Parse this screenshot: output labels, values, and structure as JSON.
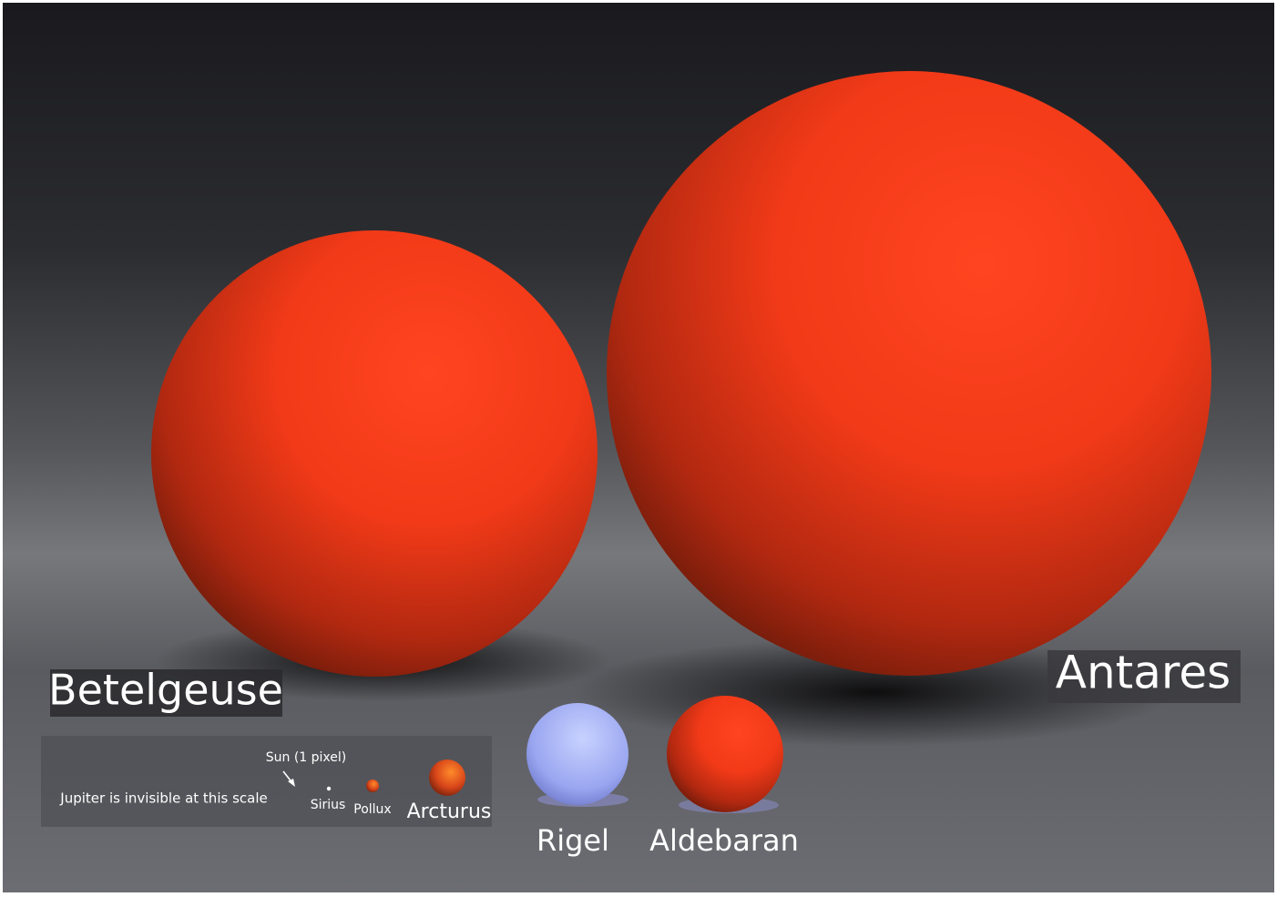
{
  "stars": [
    {
      "label": "Betelgeuse"
    },
    {
      "label": "Antares"
    },
    {
      "label": "Rigel"
    },
    {
      "label": "Aldebaran"
    },
    {
      "label": "Arcturus"
    },
    {
      "label": "Pollux"
    },
    {
      "label": "Sirius"
    }
  ],
  "notes": {
    "sun": "Sun (1 pixel)",
    "jupiter": "Jupiter is invisible at this scale"
  }
}
